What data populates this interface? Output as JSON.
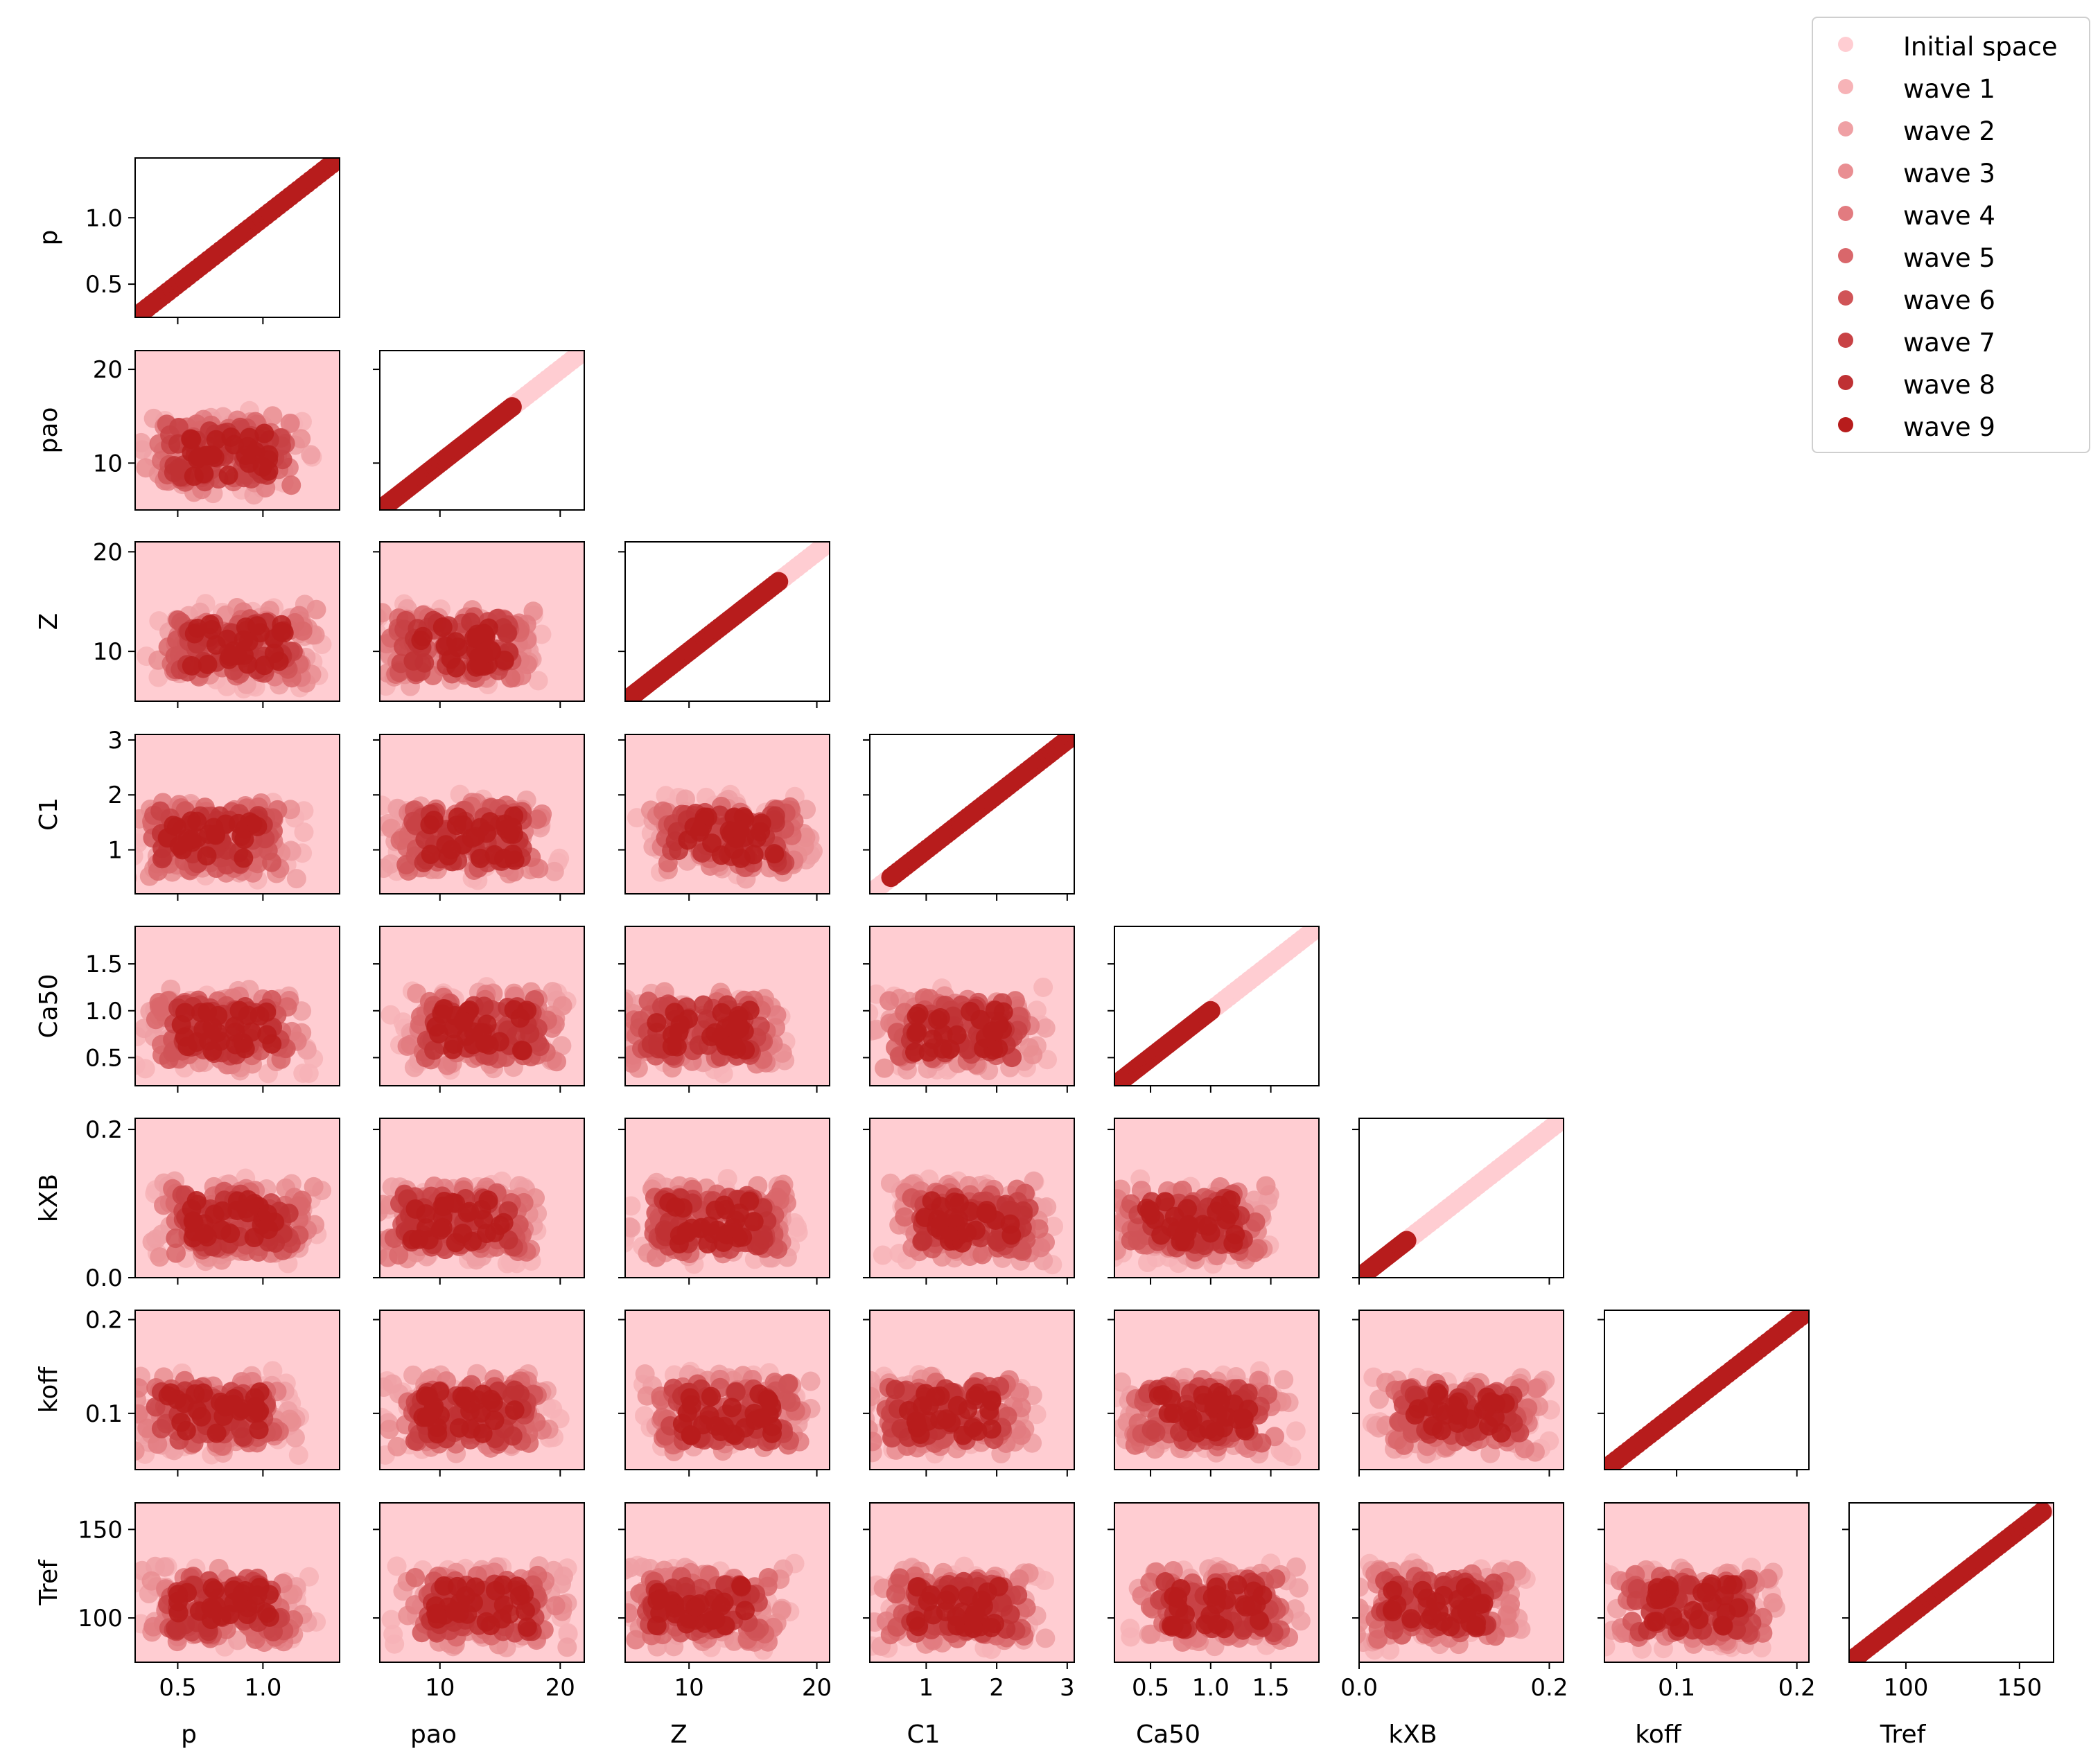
{
  "chart_data": {
    "type": "scatter",
    "layout": "corner-pairplot",
    "parameters": [
      "p",
      "pao",
      "Z",
      "C1",
      "Ca50",
      "kXB",
      "koff",
      "Tref"
    ],
    "ranges": {
      "p": [
        0.25,
        1.45
      ],
      "pao": [
        5,
        22
      ],
      "Z": [
        5,
        21
      ],
      "C1": [
        0.2,
        3.1
      ],
      "Ca50": [
        0.2,
        1.9
      ],
      "kXB": [
        0.0,
        0.215
      ],
      "koff": [
        0.04,
        0.21
      ],
      "Tref": [
        75,
        165
      ]
    },
    "ticks": {
      "p": [
        0.5,
        1.0
      ],
      "pao": [
        10,
        20
      ],
      "Z": [
        10,
        20
      ],
      "C1": [
        1,
        2,
        3
      ],
      "Ca50": [
        0.5,
        1.0,
        1.5
      ],
      "kXB": [
        0.0,
        0.2
      ],
      "koff": [
        0.1,
        0.2
      ],
      "Tref": [
        100,
        150
      ]
    },
    "tick_labels": {
      "p": [
        "0.5",
        "1.0"
      ],
      "pao": [
        "10",
        "20"
      ],
      "Z": [
        "10",
        "20"
      ],
      "C1": [
        "1",
        "2",
        "3"
      ],
      "Ca50": [
        "0.5",
        "1.0",
        "1.5"
      ],
      "kXB": [
        "0.0",
        "0.2"
      ],
      "koff": [
        "0.1",
        "0.2"
      ],
      "Tref": [
        "100",
        "150"
      ]
    },
    "series": [
      {
        "name": "Initial space",
        "color": "#ffcdd2"
      },
      {
        "name": "wave 1",
        "color": "#f7b3b7"
      },
      {
        "name": "wave 2",
        "color": "#efa0a4"
      },
      {
        "name": "wave 3",
        "color": "#e98e92"
      },
      {
        "name": "wave 4",
        "color": "#e27b80"
      },
      {
        "name": "wave 5",
        "color": "#d9676b"
      },
      {
        "name": "wave 6",
        "color": "#d05457"
      },
      {
        "name": "wave 7",
        "color": "#c84245"
      },
      {
        "name": "wave 8",
        "color": "#bf3134"
      },
      {
        "name": "wave 9",
        "color": "#b71c1c"
      }
    ],
    "diagonal_extents": {
      "p": [
        [
          0.25,
          1.45
        ],
        [
          0.25,
          1.45
        ]
      ],
      "pao": [
        [
          5,
          22
        ],
        [
          5,
          16
        ]
      ],
      "Z": [
        [
          5,
          21
        ],
        [
          5,
          17
        ]
      ],
      "C1": [
        [
          0.2,
          3.1
        ],
        [
          0.5,
          3.1
        ]
      ],
      "Ca50": [
        [
          0.2,
          1.9
        ],
        [
          0.25,
          1.0
        ]
      ],
      "kXB": [
        [
          0.0,
          0.215
        ],
        [
          0.0,
          0.05
        ]
      ],
      "koff": [
        [
          0.04,
          0.21
        ],
        [
          0.04,
          0.21
        ]
      ],
      "Tref": [
        [
          75,
          165
        ],
        [
          75,
          160
        ]
      ]
    },
    "legend_position": "top-right",
    "xlabels": [
      "p",
      "pao",
      "Z",
      "C1",
      "Ca50",
      "kXB",
      "koff",
      "Tref"
    ],
    "ylabels": [
      "p",
      "pao",
      "Z",
      "C1",
      "Ca50",
      "kXB",
      "koff",
      "Tref"
    ]
  }
}
